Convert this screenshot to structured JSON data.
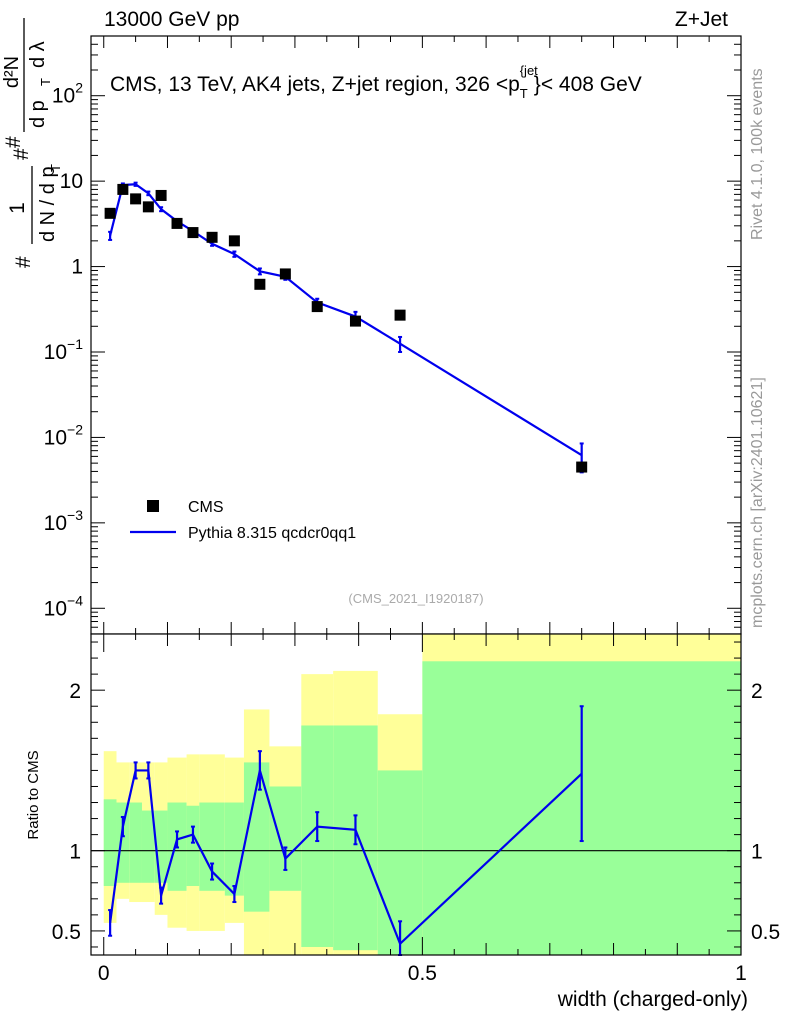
{
  "header": {
    "energy": "13000 GeV pp",
    "process": "Z+Jet"
  },
  "side": {
    "rivet": "Rivet 4.1.0,  100k events",
    "mcplots": "mcplots.cern.ch [arXiv:2401.10621]"
  },
  "chart_data": [
    {
      "type": "scatter",
      "title": "CMS, 13 TeV, AK4 jets, Z+jet region, 326 <p_T^{jet}< 408 GeV",
      "title_parts": {
        "main": "CMS, 13 TeV, AK4 jets, Z+jet region, 326 <p",
        "sub": "T",
        "sup": "{jet",
        "sup_close": "}",
        "tail": "< 408 GeV"
      },
      "ylabel": "1/dN/dp_T  d^2N/dp_T dλ",
      "ylabel_parts": {
        "hash": "#",
        "one": "1",
        "dndpt": "d N / d p",
        "T": "T",
        "d2N": "d²N",
        "dpt": "d p",
        "dl": "d λ"
      },
      "yscale": "log",
      "ylim": [
        5e-05,
        500
      ],
      "xlim": [
        -0.02,
        1.0
      ],
      "y_ticks": [
        {
          "value": 0.0001,
          "label": "10",
          "exp": "−4"
        },
        {
          "value": 0.001,
          "label": "10",
          "exp": "−3"
        },
        {
          "value": 0.01,
          "label": "10",
          "exp": "−2"
        },
        {
          "value": 0.1,
          "label": "10",
          "exp": "−1"
        },
        {
          "value": 1,
          "label": "1",
          "exp": ""
        },
        {
          "value": 10,
          "label": "10",
          "exp": ""
        },
        {
          "value": 100,
          "label": "10",
          "exp": "2"
        }
      ],
      "legend": {
        "position": "bottom-left",
        "entries": [
          "CMS",
          "Pythia 8.315 qcdcr0qq1"
        ]
      },
      "watermark": "(CMS_2021_I1920187)",
      "series": [
        {
          "name": "CMS",
          "marker": "square",
          "color": "#000000",
          "x": [
            0.01,
            0.03,
            0.05,
            0.07,
            0.09,
            0.115,
            0.14,
            0.17,
            0.205,
            0.245,
            0.285,
            0.335,
            0.395,
            0.465,
            0.75
          ],
          "y": [
            4.2,
            8.0,
            6.2,
            5.0,
            6.8,
            3.2,
            2.5,
            2.2,
            2.0,
            0.62,
            0.82,
            0.34,
            0.23,
            0.27,
            0.0045
          ]
        },
        {
          "name": "Pythia 8.315 qcdcr0qq1",
          "marker": "line",
          "color": "#0000ee",
          "x": [
            0.01,
            0.03,
            0.05,
            0.07,
            0.09,
            0.115,
            0.14,
            0.17,
            0.205,
            0.245,
            0.285,
            0.335,
            0.395,
            0.465,
            0.75
          ],
          "y": [
            2.3,
            9.0,
            9.2,
            7.2,
            4.7,
            3.4,
            2.6,
            1.85,
            1.4,
            0.88,
            0.76,
            0.38,
            0.26,
            0.125,
            0.0062
          ],
          "err": [
            0.25,
            0.4,
            0.4,
            0.35,
            0.25,
            0.15,
            0.15,
            0.1,
            0.1,
            0.07,
            0.06,
            0.04,
            0.035,
            0.025,
            0.0023
          ]
        }
      ]
    },
    {
      "type": "line",
      "title": "",
      "ylabel": "Ratio to CMS",
      "xlabel": "width (charged-only)",
      "xlim": [
        -0.02,
        1.0
      ],
      "ylim": [
        0.35,
        2.35
      ],
      "x_ticks": [
        {
          "value": 0,
          "label": "0"
        },
        {
          "value": 0.5,
          "label": "0.5"
        },
        {
          "value": 1,
          "label": "1"
        }
      ],
      "y_ticks": [
        {
          "value": 0.5,
          "label": "0.5"
        },
        {
          "value": 1,
          "label": "1"
        },
        {
          "value": 2,
          "label": "2"
        }
      ],
      "bands": [
        {
          "x0": 0.0,
          "x1": 0.02,
          "green": [
            0.78,
            1.32
          ],
          "yellow": [
            0.55,
            1.62
          ]
        },
        {
          "x0": 0.02,
          "x1": 0.04,
          "green": [
            0.8,
            1.3
          ],
          "yellow": [
            0.7,
            1.55
          ]
        },
        {
          "x0": 0.04,
          "x1": 0.06,
          "green": [
            0.8,
            1.3
          ],
          "yellow": [
            0.68,
            1.55
          ]
        },
        {
          "x0": 0.06,
          "x1": 0.08,
          "green": [
            0.8,
            1.25
          ],
          "yellow": [
            0.68,
            1.55
          ]
        },
        {
          "x0": 0.08,
          "x1": 0.1,
          "green": [
            0.8,
            1.25
          ],
          "yellow": [
            0.6,
            1.55
          ]
        },
        {
          "x0": 0.1,
          "x1": 0.13,
          "green": [
            0.75,
            1.3
          ],
          "yellow": [
            0.52,
            1.58
          ]
        },
        {
          "x0": 0.13,
          "x1": 0.15,
          "green": [
            0.78,
            1.28
          ],
          "yellow": [
            0.5,
            1.6
          ]
        },
        {
          "x0": 0.15,
          "x1": 0.19,
          "green": [
            0.75,
            1.3
          ],
          "yellow": [
            0.5,
            1.6
          ]
        },
        {
          "x0": 0.19,
          "x1": 0.22,
          "green": [
            0.72,
            1.3
          ],
          "yellow": [
            0.55,
            1.58
          ]
        },
        {
          "x0": 0.22,
          "x1": 0.26,
          "green": [
            0.62,
            1.55
          ],
          "yellow": [
            0.35,
            1.88
          ]
        },
        {
          "x0": 0.26,
          "x1": 0.31,
          "green": [
            0.75,
            1.4
          ],
          "yellow": [
            0.35,
            1.65
          ]
        },
        {
          "x0": 0.31,
          "x1": 0.36,
          "green": [
            0.4,
            1.78
          ],
          "yellow": [
            0.35,
            2.1
          ]
        },
        {
          "x0": 0.36,
          "x1": 0.43,
          "green": [
            0.38,
            1.78
          ],
          "yellow": [
            0.35,
            2.12
          ]
        },
        {
          "x0": 0.43,
          "x1": 0.5,
          "green": [
            0.35,
            1.5
          ],
          "yellow": [
            0.35,
            1.85
          ]
        },
        {
          "x0": 0.5,
          "x1": 1.0,
          "green": [
            0.35,
            2.18
          ],
          "yellow": [
            0.35,
            2.35
          ]
        }
      ],
      "series": [
        {
          "name": "Pythia 8.315 qcdcr0qq1 / CMS",
          "color": "#0000ee",
          "x": [
            0.01,
            0.03,
            0.05,
            0.07,
            0.09,
            0.115,
            0.14,
            0.17,
            0.205,
            0.245,
            0.285,
            0.335,
            0.395,
            0.465,
            0.75
          ],
          "y": [
            0.55,
            1.15,
            1.5,
            1.5,
            0.72,
            1.07,
            1.1,
            0.87,
            0.73,
            1.5,
            0.95,
            1.15,
            1.13,
            0.42,
            1.48
          ],
          "err": [
            0.08,
            0.06,
            0.05,
            0.05,
            0.05,
            0.05,
            0.05,
            0.05,
            0.05,
            0.12,
            0.07,
            0.09,
            0.09,
            0.14,
            0.42
          ]
        }
      ]
    }
  ]
}
